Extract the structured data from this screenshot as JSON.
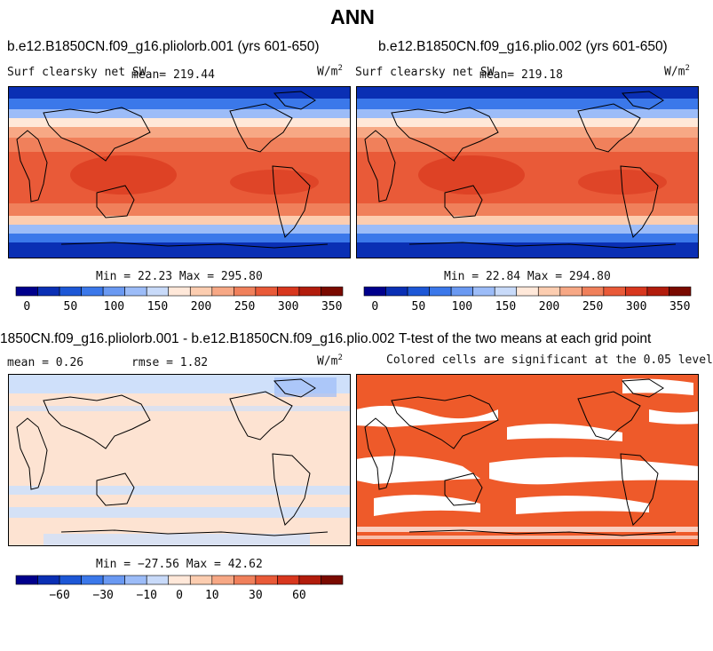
{
  "title": "ANN",
  "panels": {
    "p1": {
      "title": "b.e12.B1850CN.f09_g16.pliolorb.001 (yrs 601-650)",
      "variable": "Surf clearsky net SW",
      "mean_label": "mean= 219.44",
      "units_base": "W/m",
      "units_exp": "2",
      "minmax": "Min =  22.23 Max = 295.80"
    },
    "p2": {
      "title": "b.e12.B1850CN.f09_g16.plio.002 (yrs 601-650)",
      "variable": "Surf clearsky net SW",
      "mean_label": "mean= 219.18",
      "units_base": "W/m",
      "units_exp": "2",
      "minmax": "Min =  22.84 Max = 294.80"
    },
    "p3": {
      "title": "1850CN.f09_g16.pliolorb.001 - b.e12.B1850CN.f09_g16.plio.002",
      "mean_label": "mean =   0.26",
      "rmse_label": "rmse =   1.82",
      "units_base": "W/m",
      "units_exp": "2",
      "minmax": "Min = −27.56 Max =  42.62"
    },
    "p4": {
      "title": "T-test of the two means at each grid point",
      "subtitle": "Colored cells are significant at the 0.05 level"
    }
  },
  "colorbars": {
    "abs": {
      "colors": [
        "#00008c",
        "#0a2fb4",
        "#1d57d6",
        "#3b78ea",
        "#6a99f2",
        "#9cbcf8",
        "#c8daf9",
        "#ffe8d9",
        "#fccdb0",
        "#f7a885",
        "#f0805b",
        "#e95a38",
        "#d8371e",
        "#b21c0c",
        "#7a0a00"
      ],
      "labels": [
        "0",
        "50",
        "100",
        "150",
        "200",
        "250",
        "300",
        "350"
      ]
    },
    "diff": {
      "colors": [
        "#00008c",
        "#0a2fb4",
        "#1d57d6",
        "#3b78ea",
        "#6a99f2",
        "#9cbcf8",
        "#c8daf9",
        "#ffe8d9",
        "#fccdb0",
        "#f7a885",
        "#f0805b",
        "#e95a38",
        "#d8371e",
        "#b21c0c",
        "#7a0a00"
      ],
      "labels": [
        "−60",
        "−30",
        "−10",
        "0",
        "10",
        "30",
        "60"
      ]
    }
  },
  "colors": {
    "significant": "#ee5a2a",
    "diff_blue": "#cfe0fa",
    "diff_peach": "#fde3d2"
  }
}
